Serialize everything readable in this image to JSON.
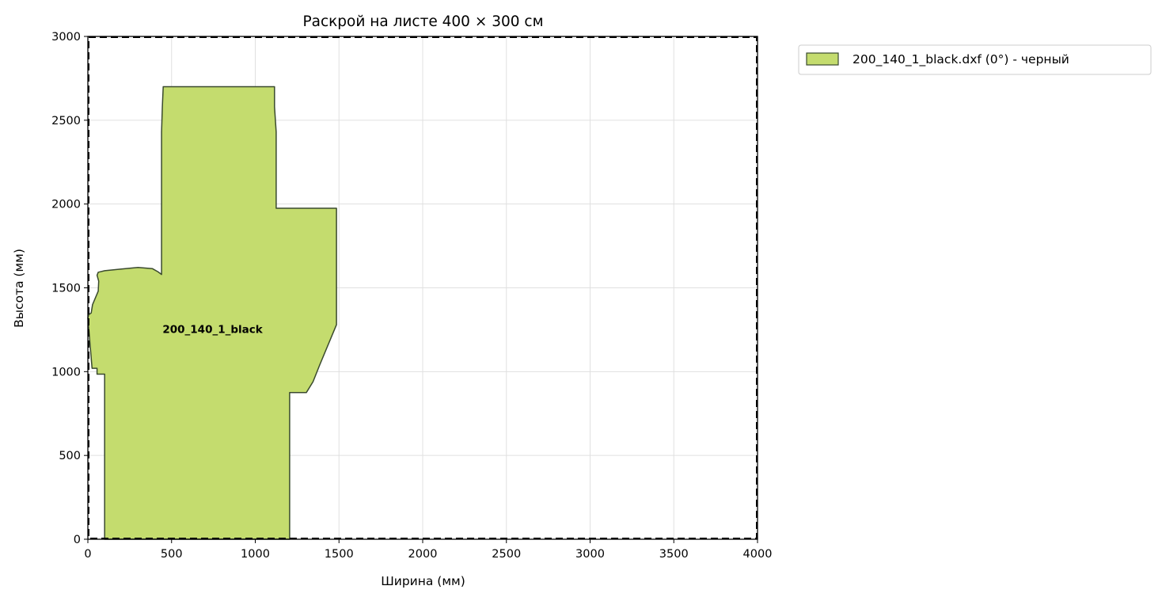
{
  "chart_data": {
    "type": "area",
    "title": "Раскрой на листе 400 × 300 см",
    "xlabel": "Ширина (мм)",
    "ylabel": "Высота (мм)",
    "xlim": [
      0,
      4000
    ],
    "ylim": [
      0,
      3000
    ],
    "xticks": [
      0,
      500,
      1000,
      1500,
      2000,
      2500,
      3000,
      3500,
      4000
    ],
    "yticks": [
      0,
      500,
      1000,
      1500,
      2000,
      2500,
      3000
    ],
    "grid": true,
    "sheet_border": "dashed",
    "legend_position": "outside-top-right",
    "colors": {
      "fill": "#c4dc6e",
      "stroke": "#3a4a2e",
      "grid": "#e0e0e0"
    },
    "pieces": [
      {
        "label": "200_140_1_black",
        "legend": "200_140_1_black.dxf (0°) - черный",
        "label_pos": [
          745,
          1230
        ],
        "outline": [
          [
            100,
            0
          ],
          [
            1205,
            0
          ],
          [
            1205,
            875
          ],
          [
            1305,
            875
          ],
          [
            1345,
            940
          ],
          [
            1385,
            1040
          ],
          [
            1485,
            1280
          ],
          [
            1485,
            1975
          ],
          [
            1125,
            1975
          ],
          [
            1125,
            2430
          ],
          [
            1115,
            2580
          ],
          [
            1115,
            2700
          ],
          [
            450,
            2700
          ],
          [
            445,
            2580
          ],
          [
            440,
            2430
          ],
          [
            440,
            1580
          ],
          [
            420,
            1595
          ],
          [
            385,
            1615
          ],
          [
            300,
            1622
          ],
          [
            200,
            1612
          ],
          [
            100,
            1602
          ],
          [
            62,
            1593
          ],
          [
            55,
            1575
          ],
          [
            65,
            1540
          ],
          [
            62,
            1480
          ],
          [
            45,
            1440
          ],
          [
            28,
            1400
          ],
          [
            20,
            1350
          ],
          [
            5,
            1340
          ],
          [
            0,
            1320
          ],
          [
            25,
            1020
          ],
          [
            55,
            1020
          ],
          [
            55,
            985
          ],
          [
            100,
            985
          ]
        ]
      }
    ]
  }
}
